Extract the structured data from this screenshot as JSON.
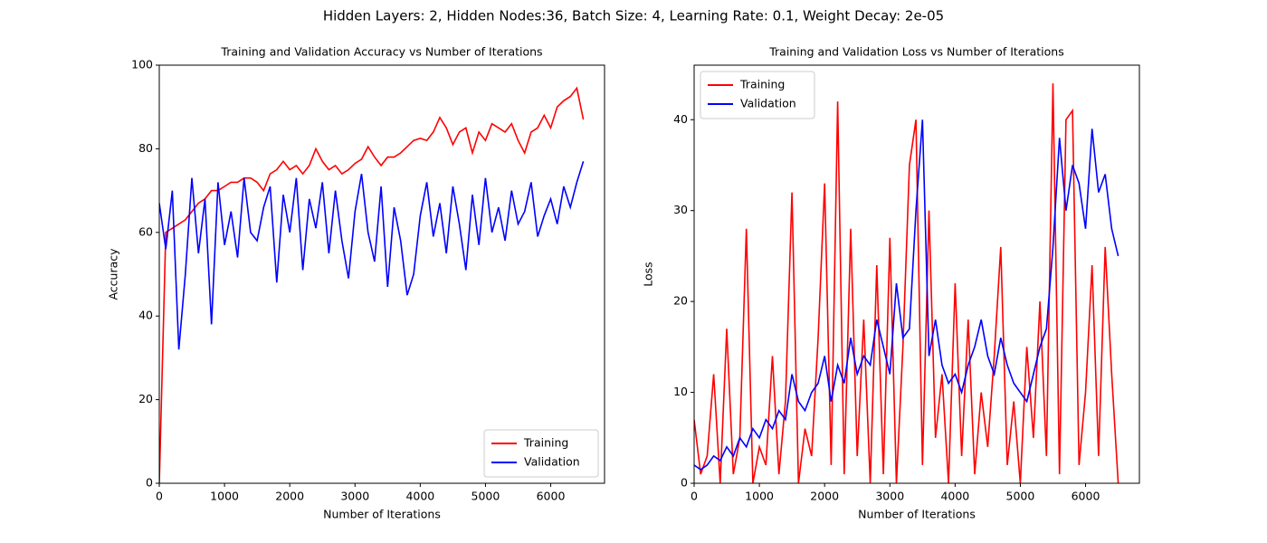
{
  "figure_title": "Hidden Layers: 2, Hidden Nodes:36, Batch Size: 4, Learning Rate: 0.1, Weight Decay: 2e-05",
  "chart_data": [
    {
      "type": "line",
      "title": "Training and Validation Accuracy vs Number of Iterations",
      "x_label": "Number of Iterations",
      "y_label": "Accuracy",
      "x": [
        0,
        100,
        200,
        300,
        400,
        500,
        600,
        700,
        800,
        900,
        1000,
        1100,
        1200,
        1300,
        1400,
        1500,
        1600,
        1700,
        1800,
        1900,
        2000,
        2100,
        2200,
        2300,
        2400,
        2500,
        2600,
        2700,
        2800,
        2900,
        3000,
        3100,
        3200,
        3300,
        3400,
        3500,
        3600,
        3700,
        3800,
        3900,
        4000,
        4100,
        4200,
        4300,
        4400,
        4500,
        4600,
        4700,
        4800,
        4900,
        5000,
        5100,
        5200,
        5300,
        5400,
        5500,
        5600,
        5700,
        5800,
        5900,
        6000,
        6100,
        6200,
        6300,
        6400,
        6500
      ],
      "series": [
        {
          "name": "Training",
          "color": "#ff0000",
          "values": [
            0,
            60,
            61,
            62,
            63,
            65,
            67,
            68,
            70,
            70,
            71,
            72,
            72,
            73,
            73,
            72,
            70,
            74,
            75,
            77,
            75,
            76,
            74,
            76,
            80,
            77,
            75,
            76,
            74,
            75,
            76.5,
            77.5,
            80.5,
            78,
            76,
            78,
            78,
            79,
            80.5,
            82,
            82.5,
            82,
            84,
            87.5,
            85,
            81,
            84,
            85,
            79,
            84,
            82,
            86,
            85,
            84,
            86,
            82,
            79,
            84,
            85,
            88,
            85,
            90,
            91.5,
            92.5,
            94.5,
            87
          ]
        },
        {
          "name": "Validation",
          "color": "#0000ff",
          "values": [
            67,
            56,
            70,
            32,
            50,
            73,
            55,
            68,
            38,
            72,
            57,
            65,
            54,
            73,
            60,
            58,
            66,
            71,
            48,
            69,
            60,
            73,
            51,
            68,
            61,
            72,
            55,
            70,
            58,
            49,
            65,
            74,
            60,
            53,
            71,
            47,
            66,
            58,
            45,
            50,
            64,
            72,
            59,
            67,
            55,
            71,
            62,
            51,
            69,
            57,
            73,
            60,
            66,
            58,
            70,
            62,
            65,
            72,
            59,
            64,
            68,
            62,
            71,
            66,
            72,
            77
          ]
        }
      ],
      "xlim": [
        0,
        6825
      ],
      "ylim": [
        0,
        100
      ],
      "xticks": [
        0,
        1000,
        2000,
        3000,
        4000,
        5000,
        6000
      ],
      "yticks": [
        0,
        20,
        40,
        60,
        80,
        100
      ],
      "legend": "lower right"
    },
    {
      "type": "line",
      "title": "Training and Validation Loss vs Number of Iterations",
      "x_label": "Number of Iterations",
      "y_label": "Loss",
      "x": [
        0,
        100,
        200,
        300,
        400,
        500,
        600,
        700,
        800,
        900,
        1000,
        1100,
        1200,
        1300,
        1400,
        1500,
        1600,
        1700,
        1800,
        1900,
        2000,
        2100,
        2200,
        2300,
        2400,
        2500,
        2600,
        2700,
        2800,
        2900,
        3000,
        3100,
        3200,
        3300,
        3400,
        3500,
        3600,
        3700,
        3800,
        3900,
        4000,
        4100,
        4200,
        4300,
        4400,
        4500,
        4600,
        4700,
        4800,
        4900,
        5000,
        5100,
        5200,
        5300,
        5400,
        5500,
        5600,
        5700,
        5800,
        5900,
        6000,
        6100,
        6200,
        6300,
        6400,
        6500
      ],
      "series": [
        {
          "name": "Training",
          "color": "#ff0000",
          "values": [
            7,
            1,
            3,
            12,
            0,
            17,
            1,
            5,
            28,
            0,
            4,
            2,
            14,
            1,
            9,
            32,
            0,
            6,
            3,
            16,
            33,
            2,
            42,
            1,
            28,
            3,
            18,
            0,
            24,
            1,
            27,
            0,
            15,
            35,
            40,
            2,
            30,
            5,
            12,
            0,
            22,
            3,
            18,
            1,
            10,
            4,
            14,
            26,
            2,
            9,
            0,
            15,
            5,
            20,
            3,
            44,
            1,
            40,
            41,
            2,
            10,
            24,
            3,
            26,
            12,
            0
          ]
        },
        {
          "name": "Validation",
          "color": "#0000ff",
          "values": [
            2,
            1.5,
            2,
            3,
            2.5,
            4,
            3,
            5,
            4,
            6,
            5,
            7,
            6,
            8,
            7,
            12,
            9,
            8,
            10,
            11,
            14,
            9,
            13,
            11,
            16,
            12,
            14,
            13,
            18,
            15,
            12,
            22,
            16,
            17,
            30,
            40,
            14,
            18,
            13,
            11,
            12,
            10,
            13,
            15,
            18,
            14,
            12,
            16,
            13,
            11,
            10,
            9,
            12,
            15,
            17,
            26,
            38,
            30,
            35,
            33,
            28,
            39,
            32,
            34,
            28,
            25
          ]
        }
      ],
      "xlim": [
        0,
        6825
      ],
      "ylim": [
        0,
        46
      ],
      "xticks": [
        0,
        1000,
        2000,
        3000,
        4000,
        5000,
        6000
      ],
      "yticks": [
        0,
        10,
        20,
        30,
        40
      ],
      "legend": "upper left"
    }
  ]
}
